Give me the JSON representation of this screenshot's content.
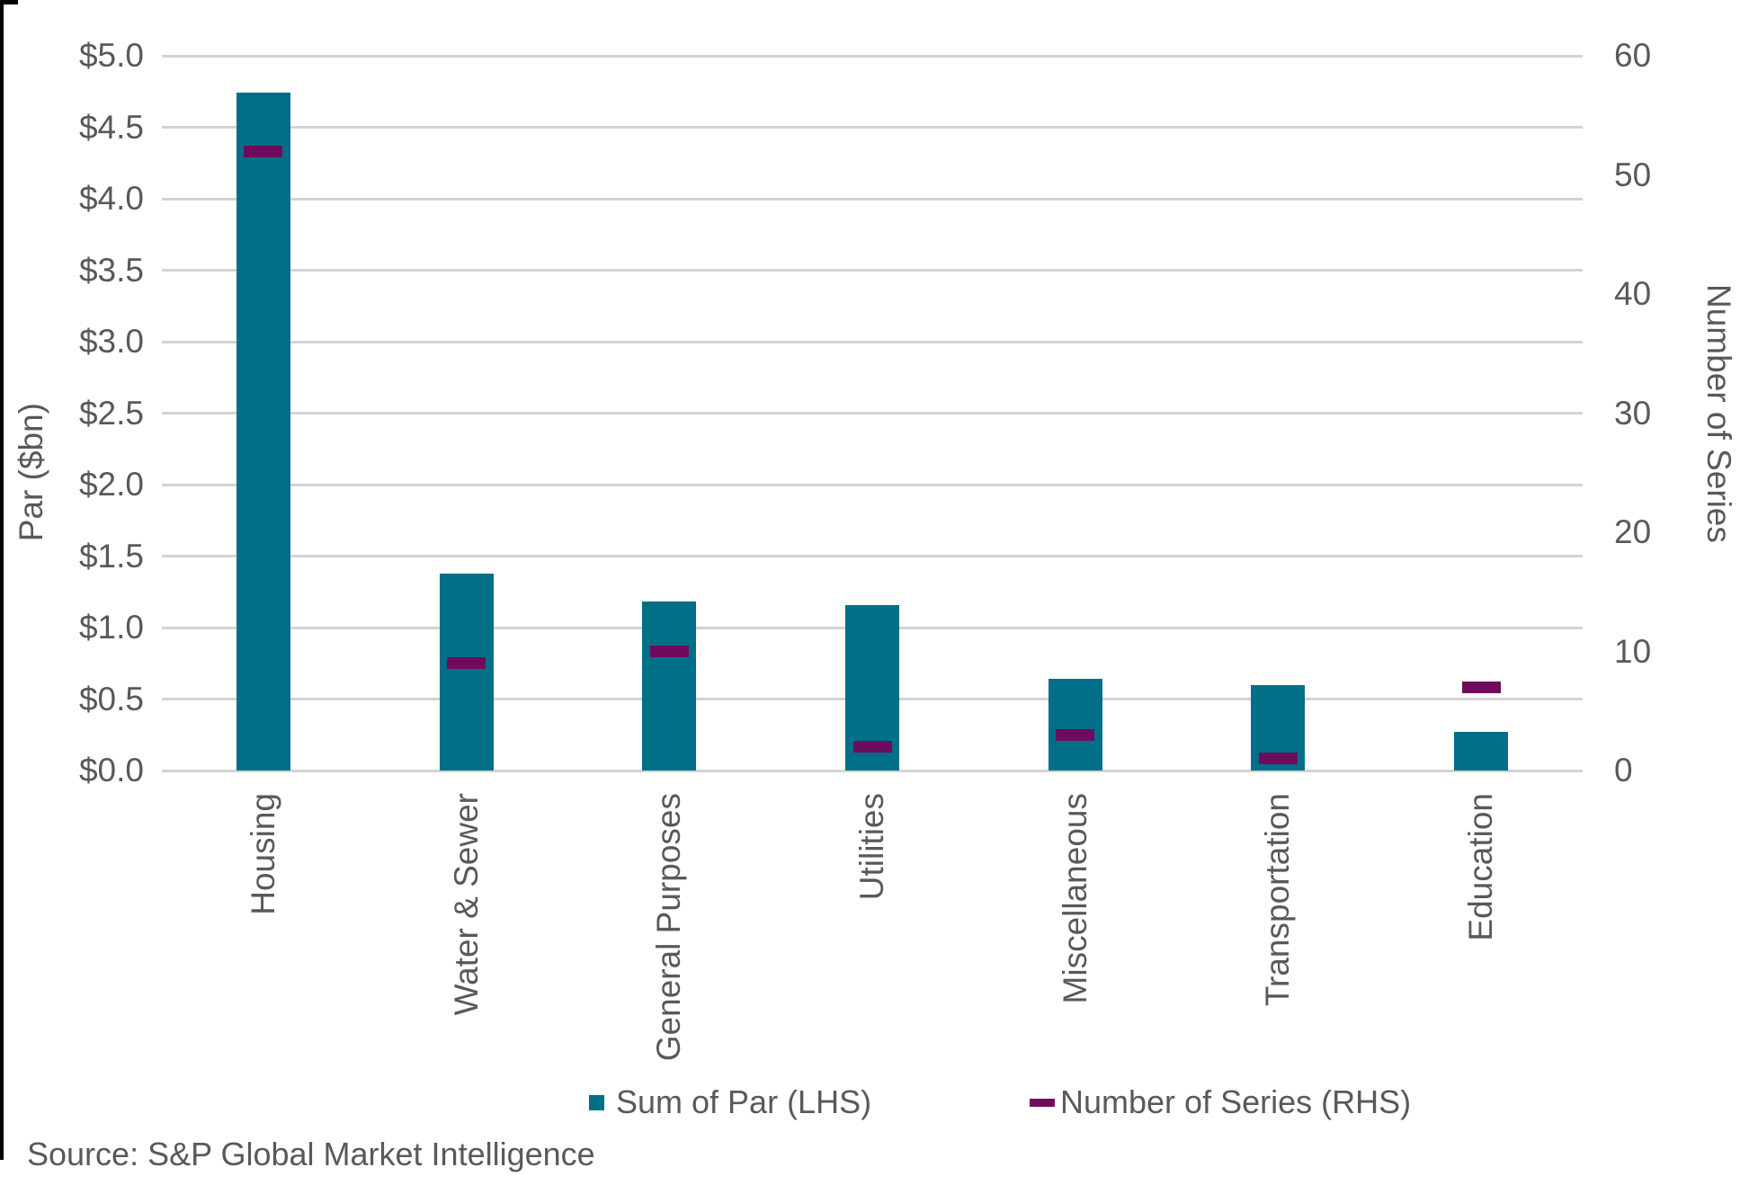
{
  "chart_data": {
    "type": "bar",
    "title": "",
    "categories": [
      "Housing",
      "Water & Sewer",
      "General Purposes",
      "Utilities",
      "Miscellaneous",
      "Transportation",
      "Education"
    ],
    "series": [
      {
        "name": "Sum of Par (LHS)",
        "type": "bar",
        "axis": "left",
        "color": "#006F87",
        "values": [
          4.74,
          1.38,
          1.18,
          1.16,
          0.64,
          0.6,
          0.27
        ]
      },
      {
        "name": "Number of Series (RHS)",
        "type": "dash",
        "axis": "right",
        "color": "#6F0B5D",
        "values": [
          52,
          9,
          10,
          2,
          3,
          1,
          7
        ]
      }
    ],
    "left_axis": {
      "title": "Par ($bn)",
      "min": 0,
      "max": 5,
      "tick_labels": [
        "$0.0",
        "$0.5",
        "$1.0",
        "$1.5",
        "$2.0",
        "$2.5",
        "$3.0",
        "$3.5",
        "$4.0",
        "$4.5",
        "$5.0"
      ]
    },
    "right_axis": {
      "title": "Number of Series",
      "min": 0,
      "max": 60,
      "tick_labels": [
        "0",
        "10",
        "20",
        "30",
        "40",
        "50",
        "60"
      ]
    },
    "grid": true,
    "legend_position": "bottom",
    "source_note": "Source: S&P Global Market Intelligence"
  },
  "styles": {
    "background": "#FFFFFF",
    "grid_color": "#D3D3D3",
    "text_color": "#595959",
    "bar_color": "#006F87",
    "dash_color": "#6F0B5D",
    "border_color": "#000000"
  }
}
